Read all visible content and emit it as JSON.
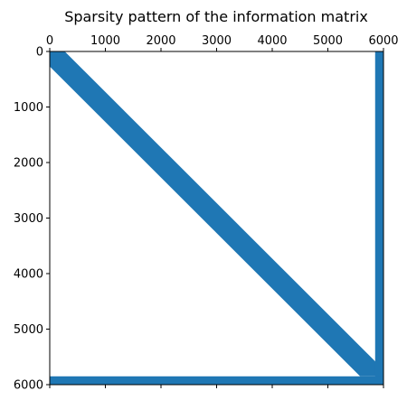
{
  "chart_data": {
    "type": "heatmap",
    "title": "Sparsity pattern of the information matrix",
    "xlabel": "",
    "ylabel": "",
    "xlim": [
      0,
      6000
    ],
    "ylim": [
      6000,
      0
    ],
    "x_ticks": [
      0,
      1000,
      2000,
      3000,
      4000,
      5000,
      6000
    ],
    "y_ticks": [
      0,
      1000,
      2000,
      3000,
      4000,
      5000,
      6000
    ],
    "x_tick_labels": [
      "0",
      "1000",
      "2000",
      "3000",
      "4000",
      "5000",
      "6000"
    ],
    "y_tick_labels": [
      "0",
      "1000",
      "2000",
      "3000",
      "4000",
      "5000",
      "6000"
    ],
    "x_axis_position": "top",
    "matrix_size": 6000,
    "grid": false,
    "marker_color": "#1f77b4",
    "nonzero_regions": [
      {
        "name": "diagonal-band",
        "from": [
          0,
          0
        ],
        "to": [
          5850,
          5850
        ],
        "half_width": 270
      },
      {
        "name": "right-column-block",
        "rows": [
          0,
          6000
        ],
        "cols": [
          5850,
          6000
        ]
      },
      {
        "name": "bottom-row-block",
        "rows": [
          5850,
          6000
        ],
        "cols": [
          0,
          6000
        ]
      }
    ]
  }
}
